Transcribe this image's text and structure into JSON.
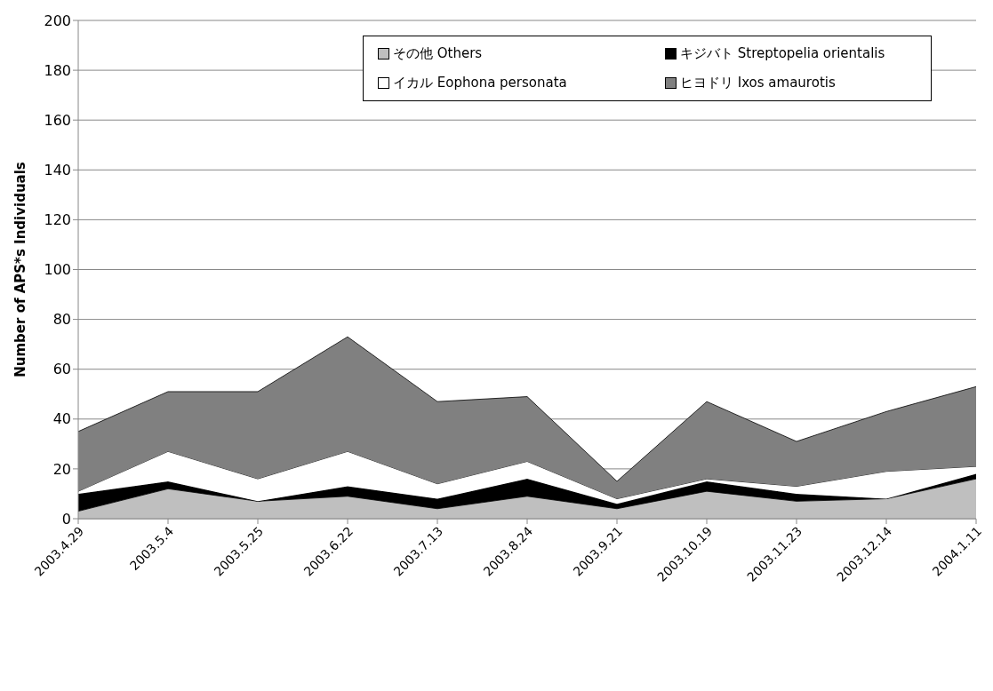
{
  "chart_data": {
    "type": "area",
    "stacked": true,
    "ylabel": "Number of APS*s Individuals",
    "categories": [
      "2003.4.29",
      "2003.5.4",
      "2003.5.25",
      "2003.6.22",
      "2003.7.13",
      "2003.8.24",
      "2003.9.21",
      "2003.10.19",
      "2003.11.23",
      "2003.12.14",
      "2004.1.11"
    ],
    "series": [
      {
        "name": "その他 Others",
        "color": "#bfbfbf",
        "values": [
          3,
          12,
          7,
          9,
          4,
          9,
          4,
          11,
          7,
          8,
          16
        ]
      },
      {
        "name": "キジバト Streptopelia orientalis",
        "color": "#000000",
        "values": [
          7,
          3,
          0,
          4,
          4,
          7,
          2,
          4,
          3,
          0,
          2
        ]
      },
      {
        "name": "イカル Eophona personata",
        "color": "#ffffff",
        "values": [
          1,
          12,
          9,
          14,
          6,
          7,
          2,
          1,
          3,
          11,
          3
        ]
      },
      {
        "name": "ヒヨドリ Ixos amaurotis",
        "color": "#808080",
        "values": [
          24,
          24,
          35,
          46,
          33,
          26,
          7,
          31,
          18,
          24,
          32
        ]
      }
    ],
    "ylim": [
      0,
      200
    ],
    "yticks": [
      0,
      20,
      40,
      60,
      80,
      100,
      120,
      140,
      160,
      180,
      200
    ],
    "grid": "y",
    "legend": "top right"
  }
}
